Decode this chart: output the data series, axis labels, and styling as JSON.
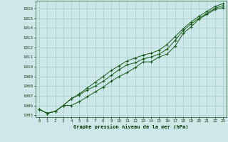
{
  "background_color": "#cce8e8",
  "grid_color": "#aacccc",
  "line_color": "#1a5c1a",
  "marker_color": "#1a5c1a",
  "xlabel": "Graphe pression niveau de la mer (hPa)",
  "xlim": [
    -0.5,
    23.5
  ],
  "ylim": [
    1004.8,
    1016.8
  ],
  "yticks": [
    1005,
    1006,
    1007,
    1008,
    1009,
    1010,
    1011,
    1012,
    1013,
    1014,
    1015,
    1016
  ],
  "xticks": [
    0,
    1,
    2,
    3,
    4,
    5,
    6,
    7,
    8,
    9,
    10,
    11,
    12,
    13,
    14,
    15,
    16,
    17,
    18,
    19,
    20,
    21,
    22,
    23
  ],
  "series1": [
    1005.6,
    1005.2,
    1005.4,
    1006.0,
    1006.0,
    1006.4,
    1006.9,
    1007.4,
    1007.9,
    1008.5,
    1009.0,
    1009.4,
    1009.9,
    1010.5,
    1010.5,
    1011.0,
    1011.3,
    1012.1,
    1013.4,
    1014.1,
    1014.9,
    1015.4,
    1015.9,
    1016.1
  ],
  "series2": [
    1005.6,
    1005.2,
    1005.4,
    1006.0,
    1006.7,
    1007.1,
    1007.6,
    1008.0,
    1008.5,
    1009.1,
    1009.7,
    1010.2,
    1010.4,
    1010.8,
    1011.0,
    1011.3,
    1011.8,
    1012.7,
    1013.7,
    1014.4,
    1015.0,
    1015.5,
    1016.0,
    1016.3
  ],
  "series3": [
    1005.6,
    1005.2,
    1005.4,
    1006.0,
    1006.7,
    1007.2,
    1007.8,
    1008.4,
    1009.0,
    1009.6,
    1010.1,
    1010.6,
    1010.9,
    1011.2,
    1011.4,
    1011.7,
    1012.3,
    1013.1,
    1013.9,
    1014.6,
    1015.2,
    1015.7,
    1016.2,
    1016.5
  ]
}
